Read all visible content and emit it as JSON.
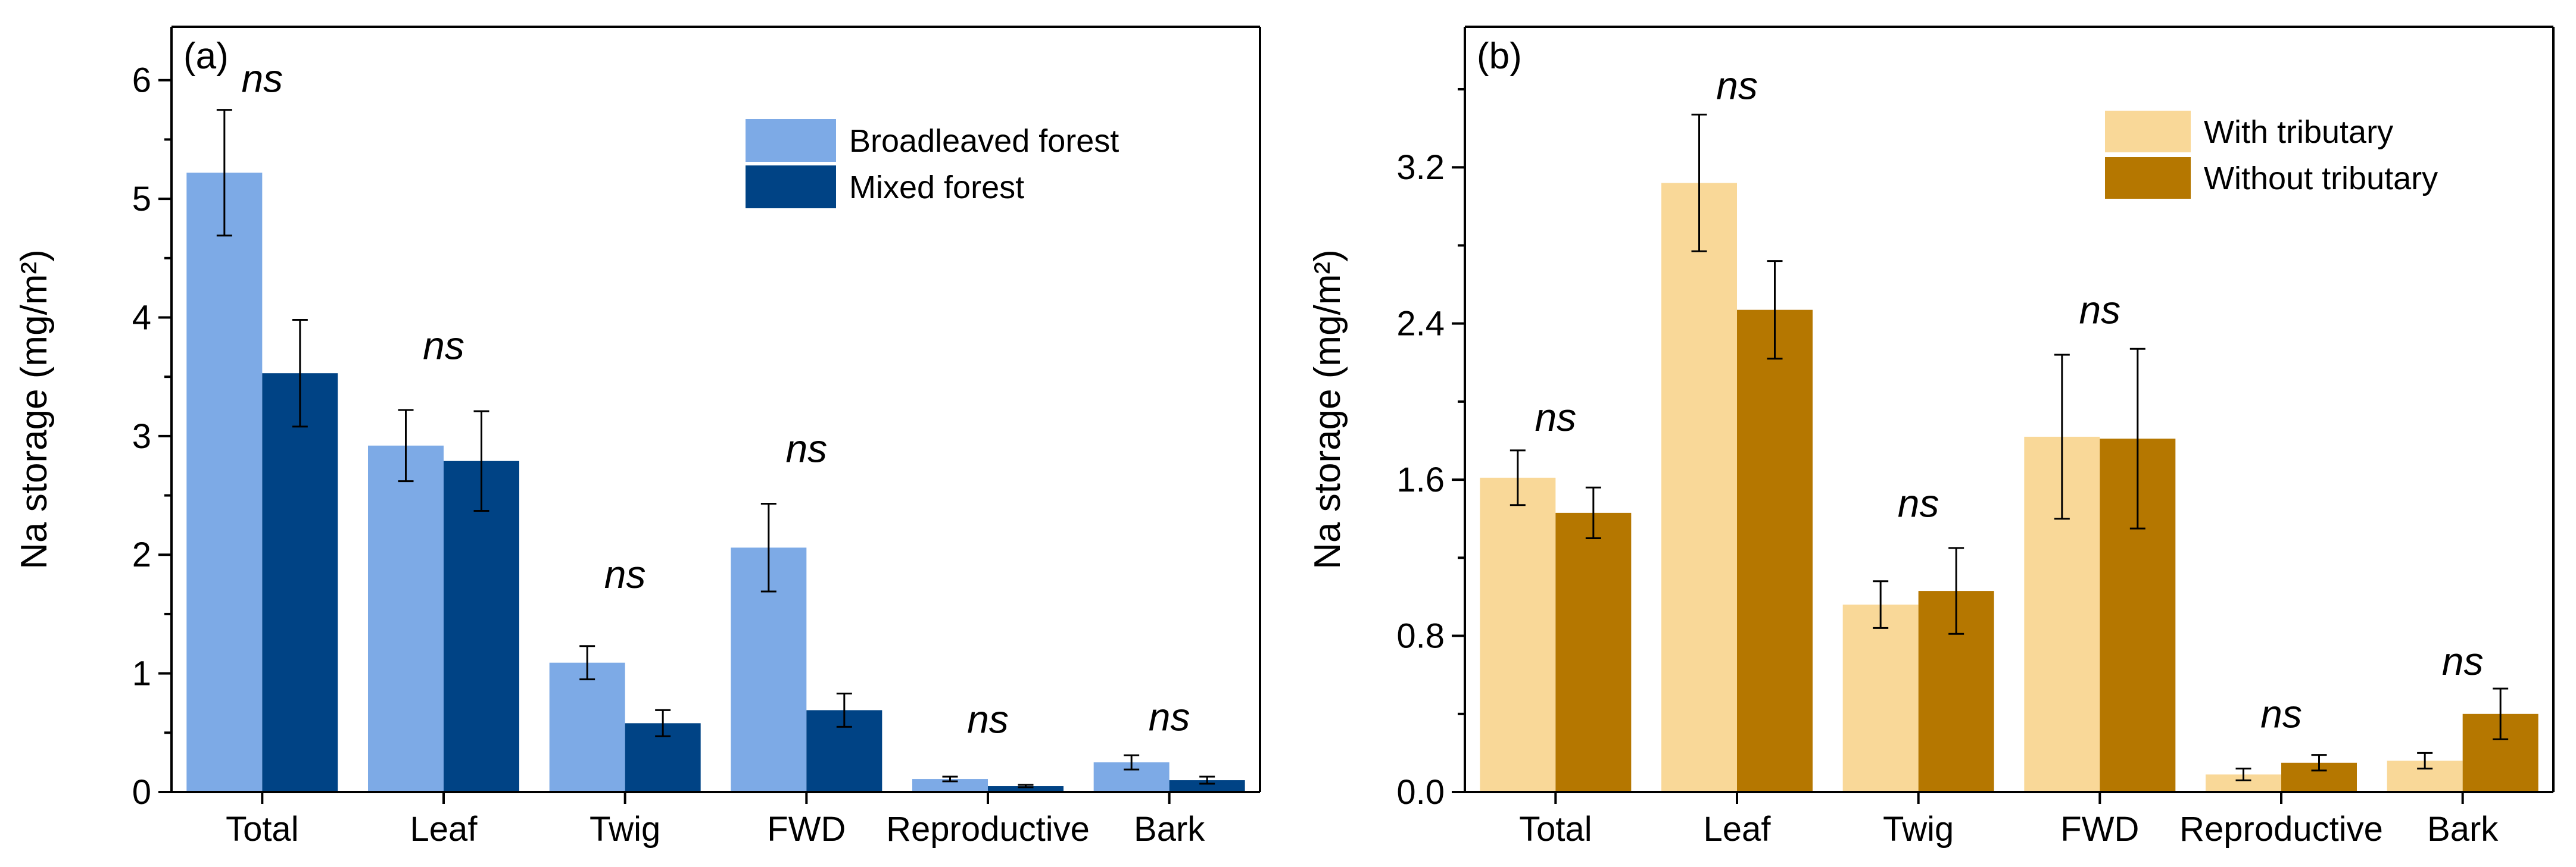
{
  "chart_data": [
    {
      "type": "bar",
      "panel_label": "(a)",
      "ylabel": "Na storage (mg/m²)",
      "ylim": [
        0,
        6.45
      ],
      "yticks": [
        0,
        1,
        2,
        3,
        4,
        5,
        6
      ],
      "ytick_labels": [
        "0",
        "1",
        "2",
        "3",
        "4",
        "5",
        "6"
      ],
      "categories": [
        "Total",
        "Leaf",
        "Twig",
        "FWD",
        "Reproductive",
        "Bark"
      ],
      "series": [
        {
          "name": "Broadleaved forest",
          "color": "#7DAAE6",
          "values": [
            5.22,
            2.92,
            1.09,
            2.06,
            0.11,
            0.25
          ],
          "errors": [
            0.53,
            0.3,
            0.14,
            0.37,
            0.02,
            0.06
          ]
        },
        {
          "name": "Mixed forest",
          "color": "#004385",
          "values": [
            3.53,
            2.79,
            0.58,
            0.69,
            0.05,
            0.1
          ],
          "errors": [
            0.45,
            0.42,
            0.11,
            0.14,
            0.01,
            0.03
          ]
        }
      ],
      "annotations": [
        "ns",
        "ns",
        "ns",
        "ns",
        "ns",
        "ns"
      ],
      "annotation_y": [
        5.9,
        3.65,
        1.72,
        2.78,
        0.5,
        0.52
      ],
      "legend": "top-right"
    },
    {
      "type": "bar",
      "panel_label": "(b)",
      "ylabel": "Na storage (mg/m²)",
      "ylim": [
        0,
        3.92
      ],
      "yticks": [
        0,
        0.8,
        1.6,
        2.4,
        3.2
      ],
      "ytick_labels": [
        "0.0",
        "0.8",
        "1.6",
        "2.4",
        "3.2"
      ],
      "categories": [
        "Total",
        "Leaf",
        "Twig",
        "FWD",
        "Reproductive",
        "Bark"
      ],
      "series": [
        {
          "name": "With tributary",
          "color": "#F9D898",
          "values": [
            1.61,
            3.12,
            0.96,
            1.82,
            0.09,
            0.16
          ],
          "errors": [
            0.14,
            0.35,
            0.12,
            0.42,
            0.03,
            0.04
          ]
        },
        {
          "name": "Without tributary",
          "color": "#B57700",
          "values": [
            1.43,
            2.47,
            1.03,
            1.81,
            0.15,
            0.4
          ],
          "errors": [
            0.13,
            0.25,
            0.22,
            0.46,
            0.04,
            0.13
          ]
        }
      ],
      "annotations": [
        "ns",
        "ns",
        "ns",
        "ns",
        "ns",
        "ns"
      ],
      "annotation_y": [
        1.85,
        3.55,
        1.41,
        2.4,
        0.33,
        0.6
      ],
      "legend": "top-right"
    }
  ]
}
